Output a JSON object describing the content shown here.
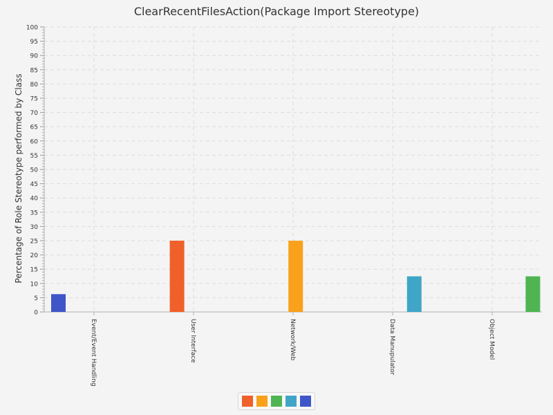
{
  "chart_data": {
    "type": "bar",
    "title": "ClearRecentFilesAction(Package Import Stereotype)",
    "xlabel": "",
    "ylabel": "Percentage of Role Stereotype performed by Class",
    "ylim": [
      0,
      100
    ],
    "yticks": [
      0,
      5,
      10,
      15,
      20,
      25,
      30,
      35,
      40,
      45,
      50,
      55,
      60,
      65,
      70,
      75,
      80,
      85,
      90,
      95,
      100
    ],
    "grid": true,
    "legend_position": "bottom",
    "categories": [
      "Event/Event Handling",
      "User Interface",
      "Network/Web",
      "Data Manupulator",
      "Object Model"
    ],
    "series": [
      {
        "color": "#f0602b",
        "values": [
          0,
          25,
          0,
          0,
          0
        ]
      },
      {
        "color": "#f9a11b",
        "values": [
          0,
          0,
          25,
          0,
          0
        ]
      },
      {
        "color": "#4fb553",
        "values": [
          0,
          0,
          0,
          0,
          12.5
        ]
      },
      {
        "color": "#3fa6c8",
        "values": [
          0,
          0,
          0,
          12.5,
          0
        ]
      },
      {
        "color": "#3f56c8",
        "values": [
          6.25,
          0,
          0,
          0,
          0
        ]
      }
    ],
    "bar_order_in_group": [
      4,
      0,
      1,
      3,
      2
    ]
  }
}
